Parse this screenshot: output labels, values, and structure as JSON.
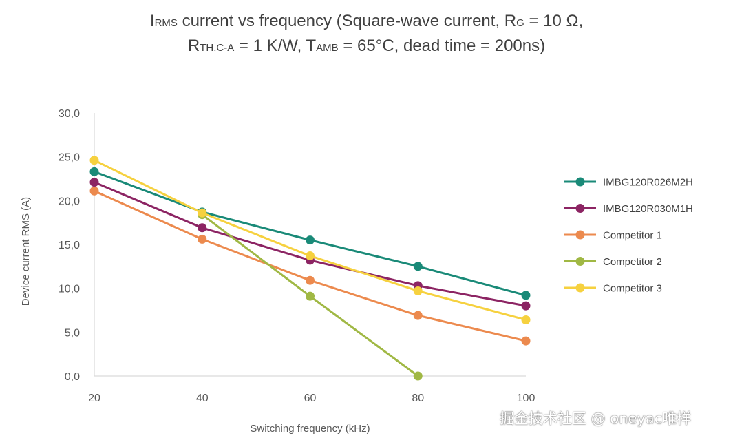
{
  "title": {
    "line1": [
      {
        "text": "I",
        "sub": false
      },
      {
        "text": "RMS",
        "sub": true
      },
      {
        "text": " current vs frequency (Square-wave current, R",
        "sub": false
      },
      {
        "text": "G",
        "sub": true
      },
      {
        "text": " = 10 Ω,",
        "sub": false
      }
    ],
    "line2": [
      {
        "text": "R",
        "sub": false
      },
      {
        "text": "TH,C-A",
        "sub": true
      },
      {
        "text": " = 1 K/W, T",
        "sub": false
      },
      {
        "text": "AMB",
        "sub": true
      },
      {
        "text": " = 65°C, dead time = 200ns)",
        "sub": false
      }
    ]
  },
  "watermark": "掘金技术社区 @ oneyac唯样",
  "chart_data": {
    "type": "line",
    "xlabel": "Switching frequency (kHz)",
    "ylabel": "Device current RMS (A)",
    "x": [
      20,
      40,
      60,
      80,
      100
    ],
    "xticks": [
      20,
      40,
      60,
      80,
      100
    ],
    "xtick_labels": [
      "20",
      "40",
      "60",
      "80",
      "100"
    ],
    "xlim": [
      20,
      100
    ],
    "yticks": [
      0,
      5,
      10,
      15,
      20,
      25,
      30
    ],
    "ytick_labels": [
      "0,0",
      "5,0",
      "10,0",
      "15,0",
      "20,0",
      "25,0",
      "30,0"
    ],
    "ylim": [
      0,
      30
    ],
    "grid": false,
    "legend_position": "right",
    "series": [
      {
        "name": "IMBG120R026M2H",
        "color": "#1a8a78",
        "values": [
          23.3,
          18.7,
          15.5,
          12.5,
          9.2
        ]
      },
      {
        "name": "IMBG120R030M1H",
        "color": "#8c2463",
        "values": [
          22.1,
          16.9,
          13.2,
          10.3,
          8.0
        ]
      },
      {
        "name": "Competitor 1",
        "color": "#ec8a4e",
        "values": [
          21.1,
          15.6,
          10.9,
          6.9,
          4.0
        ]
      },
      {
        "name": "Competitor 2",
        "color": "#a0b844",
        "values": [
          null,
          18.4,
          9.1,
          0.0,
          null
        ]
      },
      {
        "name": "Competitor 3",
        "color": "#f6d13f",
        "values": [
          24.6,
          18.6,
          13.7,
          9.7,
          6.4
        ]
      }
    ]
  }
}
